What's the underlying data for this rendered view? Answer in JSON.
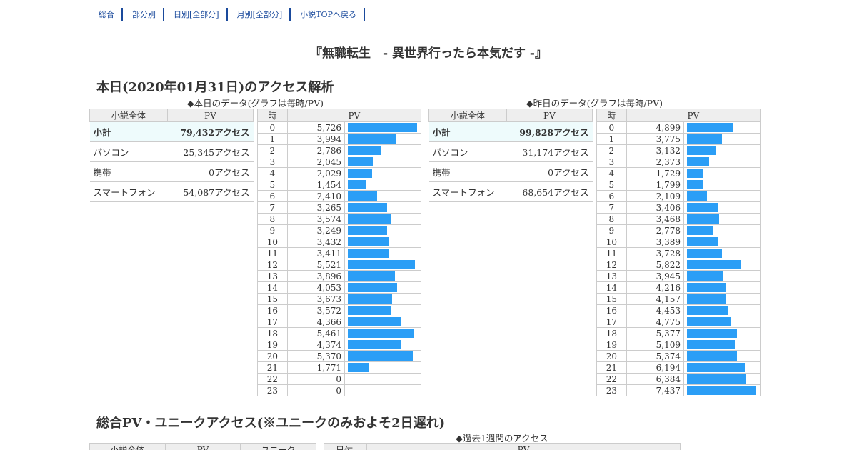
{
  "nav": [
    "総合",
    "部分別",
    "日別[全部分]",
    "月別[全部分]",
    "小説TOPへ戻る"
  ],
  "title": "『無職転生　- 異世界行ったら本気だす -』",
  "section_today": "本日(2020年01月31日)のアクセス解析",
  "today": {
    "caption": "◆本日のデータ(グラフは毎時/PV)",
    "summary_headers": [
      "小説全体",
      "PV"
    ],
    "summary": [
      {
        "label": "小計",
        "value": "79,432アクセス"
      },
      {
        "label": "パソコン",
        "value": "25,345アクセス"
      },
      {
        "label": "携帯",
        "value": "0アクセス"
      },
      {
        "label": "スマートフォン",
        "value": "54,087アクセス"
      }
    ],
    "hour_headers": [
      "時",
      "PV"
    ],
    "hours": [
      {
        "h": "0",
        "pv": "5,726",
        "v": 5726
      },
      {
        "h": "1",
        "pv": "3,994",
        "v": 3994
      },
      {
        "h": "2",
        "pv": "2,786",
        "v": 2786
      },
      {
        "h": "3",
        "pv": "2,045",
        "v": 2045
      },
      {
        "h": "4",
        "pv": "2,029",
        "v": 2029
      },
      {
        "h": "5",
        "pv": "1,454",
        "v": 1454
      },
      {
        "h": "6",
        "pv": "2,410",
        "v": 2410
      },
      {
        "h": "7",
        "pv": "3,265",
        "v": 3265
      },
      {
        "h": "8",
        "pv": "3,574",
        "v": 3574
      },
      {
        "h": "9",
        "pv": "3,249",
        "v": 3249
      },
      {
        "h": "10",
        "pv": "3,432",
        "v": 3432
      },
      {
        "h": "11",
        "pv": "3,411",
        "v": 3411
      },
      {
        "h": "12",
        "pv": "5,521",
        "v": 5521
      },
      {
        "h": "13",
        "pv": "3,896",
        "v": 3896
      },
      {
        "h": "14",
        "pv": "4,053",
        "v": 4053
      },
      {
        "h": "15",
        "pv": "3,673",
        "v": 3673
      },
      {
        "h": "16",
        "pv": "3,572",
        "v": 3572
      },
      {
        "h": "17",
        "pv": "4,366",
        "v": 4366
      },
      {
        "h": "18",
        "pv": "5,461",
        "v": 5461
      },
      {
        "h": "19",
        "pv": "4,374",
        "v": 4374
      },
      {
        "h": "20",
        "pv": "5,370",
        "v": 5370
      },
      {
        "h": "21",
        "pv": "1,771",
        "v": 1771
      },
      {
        "h": "22",
        "pv": "0",
        "v": 0
      },
      {
        "h": "23",
        "pv": "0",
        "v": 0
      }
    ]
  },
  "yesterday": {
    "caption": "◆昨日のデータ(グラフは毎時/PV)",
    "summary_headers": [
      "小説全体",
      "PV"
    ],
    "summary": [
      {
        "label": "小計",
        "value": "99,828アクセス"
      },
      {
        "label": "パソコン",
        "value": "31,174アクセス"
      },
      {
        "label": "携帯",
        "value": "0アクセス"
      },
      {
        "label": "スマートフォン",
        "value": "68,654アクセス"
      }
    ],
    "hour_headers": [
      "時",
      "PV"
    ],
    "hours": [
      {
        "h": "0",
        "pv": "4,899",
        "v": 4899
      },
      {
        "h": "1",
        "pv": "3,775",
        "v": 3775
      },
      {
        "h": "2",
        "pv": "3,132",
        "v": 3132
      },
      {
        "h": "3",
        "pv": "2,373",
        "v": 2373
      },
      {
        "h": "4",
        "pv": "1,729",
        "v": 1729
      },
      {
        "h": "5",
        "pv": "1,799",
        "v": 1799
      },
      {
        "h": "6",
        "pv": "2,109",
        "v": 2109
      },
      {
        "h": "7",
        "pv": "3,406",
        "v": 3406
      },
      {
        "h": "8",
        "pv": "3,468",
        "v": 3468
      },
      {
        "h": "9",
        "pv": "2,778",
        "v": 2778
      },
      {
        "h": "10",
        "pv": "3,389",
        "v": 3389
      },
      {
        "h": "11",
        "pv": "3,728",
        "v": 3728
      },
      {
        "h": "12",
        "pv": "5,822",
        "v": 5822
      },
      {
        "h": "13",
        "pv": "3,945",
        "v": 3945
      },
      {
        "h": "14",
        "pv": "4,216",
        "v": 4216
      },
      {
        "h": "15",
        "pv": "4,157",
        "v": 4157
      },
      {
        "h": "16",
        "pv": "4,453",
        "v": 4453
      },
      {
        "h": "17",
        "pv": "4,775",
        "v": 4775
      },
      {
        "h": "18",
        "pv": "5,377",
        "v": 5377
      },
      {
        "h": "19",
        "pv": "5,109",
        "v": 5109
      },
      {
        "h": "20",
        "pv": "5,374",
        "v": 5374
      },
      {
        "h": "21",
        "pv": "6,194",
        "v": 6194
      },
      {
        "h": "22",
        "pv": "6,384",
        "v": 6384
      },
      {
        "h": "23",
        "pv": "7,437",
        "v": 7437
      }
    ]
  },
  "section_total": "総合PV・ユニークアクセス(※ユニークのみおよそ2日遅れ)",
  "weekly_caption": "◆過去1週間のアクセス",
  "total_headers": [
    "小説全体",
    "PV",
    "ユニーク"
  ],
  "weekly_headers": [
    "日付",
    "PV"
  ],
  "colors": {
    "bar": "#2b9ef6",
    "link": "#1a4a9c",
    "subtotal_bg": "#eefbfc"
  }
}
